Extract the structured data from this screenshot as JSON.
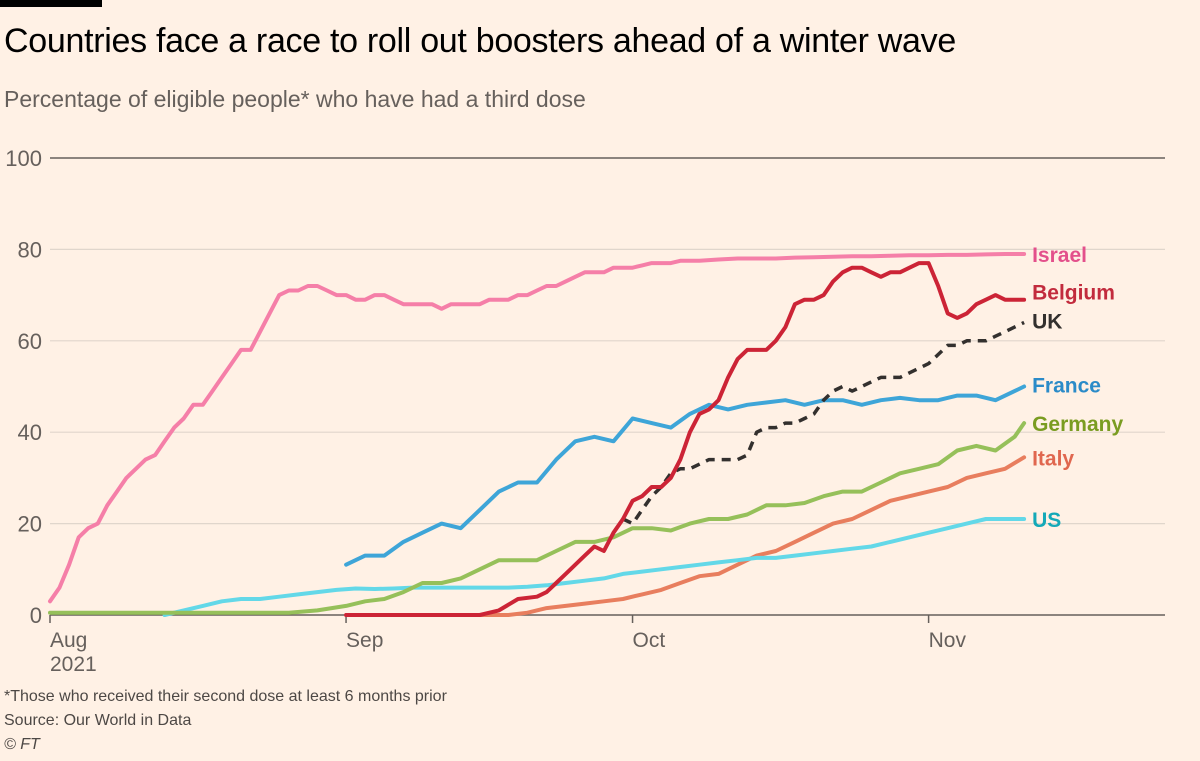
{
  "header": {
    "title": "Countries face a race to roll out boosters ahead of a winter wave",
    "subtitle": "Percentage of eligible people* who have had a third dose"
  },
  "footer": {
    "note": "*Those who received their second dose at least 6 months prior",
    "source": "Source: Our World in Data",
    "copyright": "© FT"
  },
  "chart_data": {
    "type": "line",
    "title": "Countries face a race to roll out boosters ahead of a winter wave",
    "subtitle": "Percentage of eligible people* who have had a third dose",
    "xlabel": "",
    "ylabel": "",
    "x_unit": "days since 1 Aug 2021",
    "xlim": [
      0,
      117
    ],
    "ylim": [
      0,
      100
    ],
    "yticks": [
      0,
      20,
      40,
      60,
      80,
      100
    ],
    "xticks": [
      {
        "day": 0,
        "label": "Aug",
        "sublabel": "2021"
      },
      {
        "day": 31,
        "label": "Sep",
        "sublabel": ""
      },
      {
        "day": 61,
        "label": "Oct",
        "sublabel": ""
      },
      {
        "day": 92,
        "label": "Nov",
        "sublabel": ""
      }
    ],
    "grid": true,
    "legend": "direct labels at line ends (right)",
    "series": [
      {
        "name": "Israel",
        "color": "#f57fa8",
        "label_color": "#e3508b",
        "dashed": false,
        "x": [
          0,
          1,
          2,
          3,
          4,
          5,
          6,
          7,
          8,
          9,
          10,
          11,
          12,
          13,
          14,
          15,
          16,
          17,
          18,
          19,
          20,
          21,
          22,
          23,
          24,
          25,
          26,
          27,
          28,
          29,
          30,
          31,
          32,
          33,
          34,
          35,
          36,
          37,
          38,
          39,
          40,
          41,
          42,
          43,
          44,
          45,
          46,
          47,
          48,
          49,
          50,
          51,
          52,
          53,
          54,
          55,
          56,
          57,
          58,
          59,
          60,
          61,
          62,
          63,
          64,
          65,
          66,
          68,
          70,
          72,
          74,
          76,
          78,
          80,
          82,
          84,
          86,
          88,
          90,
          92,
          94,
          96,
          98,
          100,
          102
        ],
        "y": [
          3,
          6,
          11,
          17,
          19,
          20,
          24,
          27,
          30,
          32,
          34,
          35,
          38,
          41,
          43,
          46,
          46,
          49,
          52,
          55,
          58,
          58,
          62,
          66,
          70,
          71,
          71,
          72,
          72,
          71,
          70,
          70,
          69,
          69,
          70,
          70,
          69,
          68,
          68,
          68,
          68,
          67,
          68,
          68,
          68,
          68,
          69,
          69,
          69,
          70,
          70,
          71,
          72,
          72,
          73,
          74,
          75,
          75,
          75,
          76,
          76,
          76,
          76.5,
          77,
          77,
          77,
          77.5,
          77.5,
          77.8,
          78,
          78,
          78,
          78.2,
          78.3,
          78.4,
          78.5,
          78.5,
          78.6,
          78.7,
          78.7,
          78.8,
          78.8,
          78.9,
          79,
          79
        ]
      },
      {
        "name": "Belgium",
        "color": "#cc2436",
        "label_color": "#c22b3d",
        "dashed": false,
        "x": [
          31,
          40,
          45,
          47,
          49,
          51,
          52,
          53,
          54,
          55,
          56,
          57,
          58,
          59,
          60,
          61,
          62,
          63,
          64,
          65,
          66,
          67,
          68,
          69,
          70,
          71,
          72,
          73,
          74,
          75,
          76,
          77,
          78,
          79,
          80,
          81,
          82,
          83,
          84,
          85,
          86,
          87,
          88,
          89,
          90,
          91,
          92,
          93,
          94,
          95,
          96,
          97,
          98,
          99,
          100,
          101,
          102
        ],
        "y": [
          0,
          0,
          0,
          1,
          3.5,
          4,
          5,
          7,
          9,
          11,
          13,
          15,
          14,
          18,
          21,
          25,
          26,
          28,
          28,
          30,
          34,
          40,
          44,
          45,
          47,
          52,
          56,
          58,
          58,
          58,
          60,
          63,
          68,
          69,
          69,
          70,
          73,
          75,
          76,
          76,
          75,
          74,
          75,
          75,
          76,
          77,
          77,
          72,
          66,
          65,
          66,
          68,
          69,
          70,
          69,
          69,
          69
        ]
      },
      {
        "name": "UK",
        "color": "#33302e",
        "label_color": "#33302e",
        "dashed": true,
        "x": [
          60,
          61,
          62,
          63,
          64,
          65,
          66,
          67,
          68,
          69,
          70,
          71,
          72,
          73,
          74,
          75,
          76,
          77,
          78,
          79,
          80,
          81,
          82,
          83,
          84,
          85,
          86,
          87,
          88,
          89,
          90,
          91,
          92,
          93,
          94,
          95,
          96,
          97,
          98,
          99,
          100,
          101,
          102
        ],
        "y": [
          21,
          20,
          23,
          26,
          28,
          31,
          32,
          32,
          33,
          34,
          34,
          34,
          34,
          35,
          40,
          41,
          41,
          42,
          42,
          43,
          44,
          47,
          49,
          50,
          49,
          50,
          51,
          52,
          52,
          52,
          53,
          54,
          55,
          57,
          59,
          59,
          60,
          60,
          60,
          61,
          62,
          63,
          64
        ]
      },
      {
        "name": "France",
        "color": "#3ea5d8",
        "label_color": "#2b8bc8",
        "dashed": false,
        "x": [
          31,
          33,
          35,
          37,
          39,
          41,
          43,
          45,
          47,
          49,
          51,
          53,
          55,
          57,
          59,
          61,
          63,
          65,
          67,
          69,
          71,
          73,
          75,
          77,
          79,
          81,
          83,
          85,
          87,
          89,
          91,
          93,
          95,
          97,
          99,
          101,
          102
        ],
        "y": [
          11,
          13,
          13,
          16,
          18,
          20,
          19,
          23,
          27,
          29,
          29,
          34,
          38,
          39,
          38,
          43,
          42,
          41,
          44,
          46,
          45,
          46,
          46.5,
          47,
          46,
          47,
          47,
          46,
          47,
          47.5,
          47,
          47,
          48,
          48,
          47,
          49,
          50
        ]
      },
      {
        "name": "Germany",
        "color": "#96c05a",
        "label_color": "#7a9c21",
        "dashed": false,
        "x": [
          0,
          12,
          15,
          20,
          25,
          28,
          31,
          33,
          35,
          37,
          39,
          41,
          43,
          45,
          47,
          49,
          51,
          53,
          55,
          57,
          59,
          61,
          63,
          65,
          67,
          69,
          71,
          73,
          75,
          77,
          79,
          81,
          83,
          85,
          87,
          89,
          91,
          93,
          95,
          97,
          99,
          101,
          102
        ],
        "y": [
          0.5,
          0.5,
          0.5,
          0.5,
          0.5,
          1,
          2,
          3,
          3.5,
          5,
          7,
          7,
          8,
          10,
          12,
          12,
          12,
          14,
          16,
          16,
          17,
          19,
          19,
          18.5,
          20,
          21,
          21,
          22,
          24,
          24,
          24.5,
          26,
          27,
          27,
          29,
          31,
          32,
          33,
          36,
          37,
          36,
          39,
          42
        ]
      },
      {
        "name": "Italy",
        "color": "#e87e5e",
        "label_color": "#e0674f",
        "dashed": false,
        "x": [
          31,
          40,
          48,
          50,
          52,
          54,
          56,
          58,
          60,
          62,
          64,
          66,
          68,
          70,
          72,
          74,
          76,
          78,
          80,
          82,
          84,
          86,
          88,
          90,
          92,
          94,
          96,
          98,
          100,
          102
        ],
        "y": [
          0,
          0,
          0,
          0.5,
          1.5,
          2,
          2.5,
          3,
          3.5,
          4.5,
          5.5,
          7,
          8.5,
          9,
          11,
          13,
          14,
          16,
          18,
          20,
          21,
          23,
          25,
          26,
          27,
          28,
          30,
          31,
          32,
          34.5
        ]
      },
      {
        "name": "US",
        "color": "#63d8e8",
        "label_color": "#14a9b8",
        "dashed": false,
        "x": [
          12,
          14,
          16,
          18,
          20,
          22,
          24,
          26,
          28,
          30,
          32,
          34,
          36,
          38,
          40,
          42,
          44,
          46,
          48,
          50,
          52,
          54,
          56,
          58,
          60,
          62,
          64,
          66,
          68,
          70,
          72,
          74,
          76,
          78,
          80,
          82,
          84,
          86,
          88,
          90,
          92,
          94,
          96,
          98,
          100,
          102
        ],
        "y": [
          0,
          1,
          2,
          3,
          3.5,
          3.5,
          4,
          4.5,
          5,
          5.5,
          5.8,
          5.7,
          5.8,
          6,
          6,
          6,
          6,
          6,
          6,
          6.2,
          6.5,
          7,
          7.5,
          8,
          9,
          9.5,
          10,
          10.5,
          11,
          11.5,
          12,
          12.5,
          12.5,
          13,
          13.5,
          14,
          14.5,
          15,
          16,
          17,
          18,
          19,
          20,
          21,
          21,
          21
        ]
      }
    ]
  }
}
